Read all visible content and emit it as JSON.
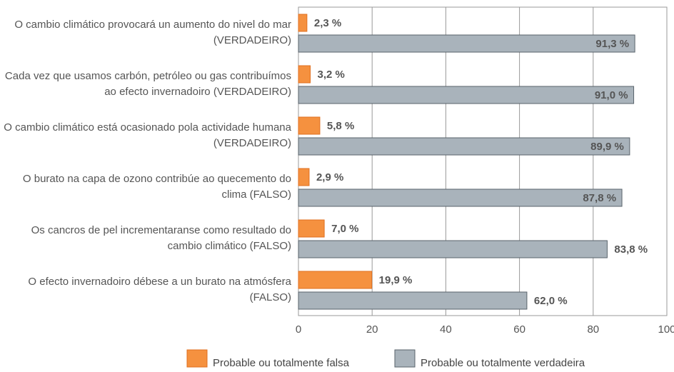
{
  "chart_data": {
    "type": "bar",
    "orientation": "horizontal",
    "categories": [
      "O cambio climático provocará un aumento do nivel do mar (VERDADEIRO)",
      "Cada vez que usamos carbón, petróleo ou gas contribuímos ao efecto invernadoiro (VERDADEIRO)",
      "O cambio climático está ocasionado pola actividade humana (VERDADEIRO)",
      "O burato na capa de ozono contribúe ao quecemento do clima (FALSO)",
      "Os cancros de pel incrementaranse como resultado do cambio climático (FALSO)",
      "O efecto invernadoiro débese a un burato na atmósfera (FALSO)"
    ],
    "series": [
      {
        "name": "Probable ou totalmente falsa",
        "color": "#f5913f",
        "values": [
          2.3,
          3.2,
          5.8,
          2.9,
          7.0,
          19.9
        ],
        "value_labels": [
          "2,3 %",
          "3,2 %",
          "5,8 %",
          "2,9 %",
          "7,0 %",
          "19,9 %"
        ]
      },
      {
        "name": "Probable ou totalmente verdadeira",
        "color": "#a9b3bb",
        "values": [
          91.3,
          91.0,
          89.9,
          87.8,
          83.8,
          62.0
        ],
        "value_labels": [
          "91,3 %",
          "91,0 %",
          "89,9 %",
          "87,8 %",
          "83,8 %",
          "62,0 %"
        ]
      }
    ],
    "xlim": [
      0,
      100
    ],
    "xticks": [
      0,
      20,
      40,
      60,
      80,
      100
    ],
    "grid": true,
    "legend": "bottom"
  }
}
